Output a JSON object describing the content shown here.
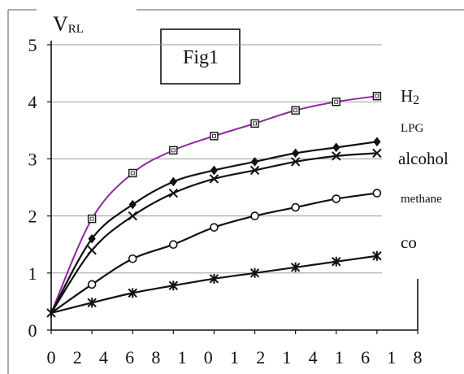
{
  "chart_data": {
    "type": "line",
    "title": "Fig1",
    "ylabel_main": "V",
    "ylabel_sub": "RL",
    "xlabel": "",
    "xlim": [
      0,
      18
    ],
    "ylim": [
      0,
      5
    ],
    "grid": true,
    "x_tick_labels": [
      "0",
      "2",
      "4",
      "6",
      "8",
      "1",
      "0",
      "1",
      "2",
      "1",
      "4",
      "1",
      "6",
      "1",
      "8"
    ],
    "y_tick_labels": [
      "0",
      "1",
      "2",
      "3",
      "4",
      "5"
    ],
    "series": [
      {
        "name": "H2",
        "name_main": "H",
        "name_sub": "2",
        "marker": "square",
        "color": "#8e2a9c",
        "x": [
          0,
          2,
          4,
          6,
          8,
          10,
          12,
          14,
          16
        ],
        "y": [
          0.3,
          1.95,
          2.75,
          3.15,
          3.4,
          3.62,
          3.85,
          4.0,
          4.1
        ]
      },
      {
        "name": "LPG",
        "marker": "diamond",
        "color": "#111111",
        "x": [
          0,
          2,
          4,
          6,
          8,
          10,
          12,
          14,
          16
        ],
        "y": [
          0.3,
          1.6,
          2.2,
          2.6,
          2.8,
          2.95,
          3.1,
          3.2,
          3.3
        ]
      },
      {
        "name": "alcohol",
        "marker": "x",
        "color": "#111111",
        "x": [
          0,
          2,
          4,
          6,
          8,
          10,
          12,
          14,
          16
        ],
        "y": [
          0.3,
          1.4,
          2.0,
          2.4,
          2.65,
          2.8,
          2.95,
          3.05,
          3.1
        ]
      },
      {
        "name": "methane",
        "marker": "circle",
        "color": "#111111",
        "x": [
          0,
          2,
          4,
          6,
          8,
          10,
          12,
          14,
          16
        ],
        "y": [
          0.3,
          0.8,
          1.25,
          1.5,
          1.8,
          2.0,
          2.15,
          2.3,
          2.4
        ]
      },
      {
        "name": "co",
        "marker": "asterisk",
        "color": "#111111",
        "x": [
          0,
          2,
          4,
          6,
          8,
          10,
          12,
          14,
          16
        ],
        "y": [
          0.3,
          0.48,
          0.65,
          0.78,
          0.9,
          1.0,
          1.1,
          1.2,
          1.3
        ]
      }
    ]
  }
}
